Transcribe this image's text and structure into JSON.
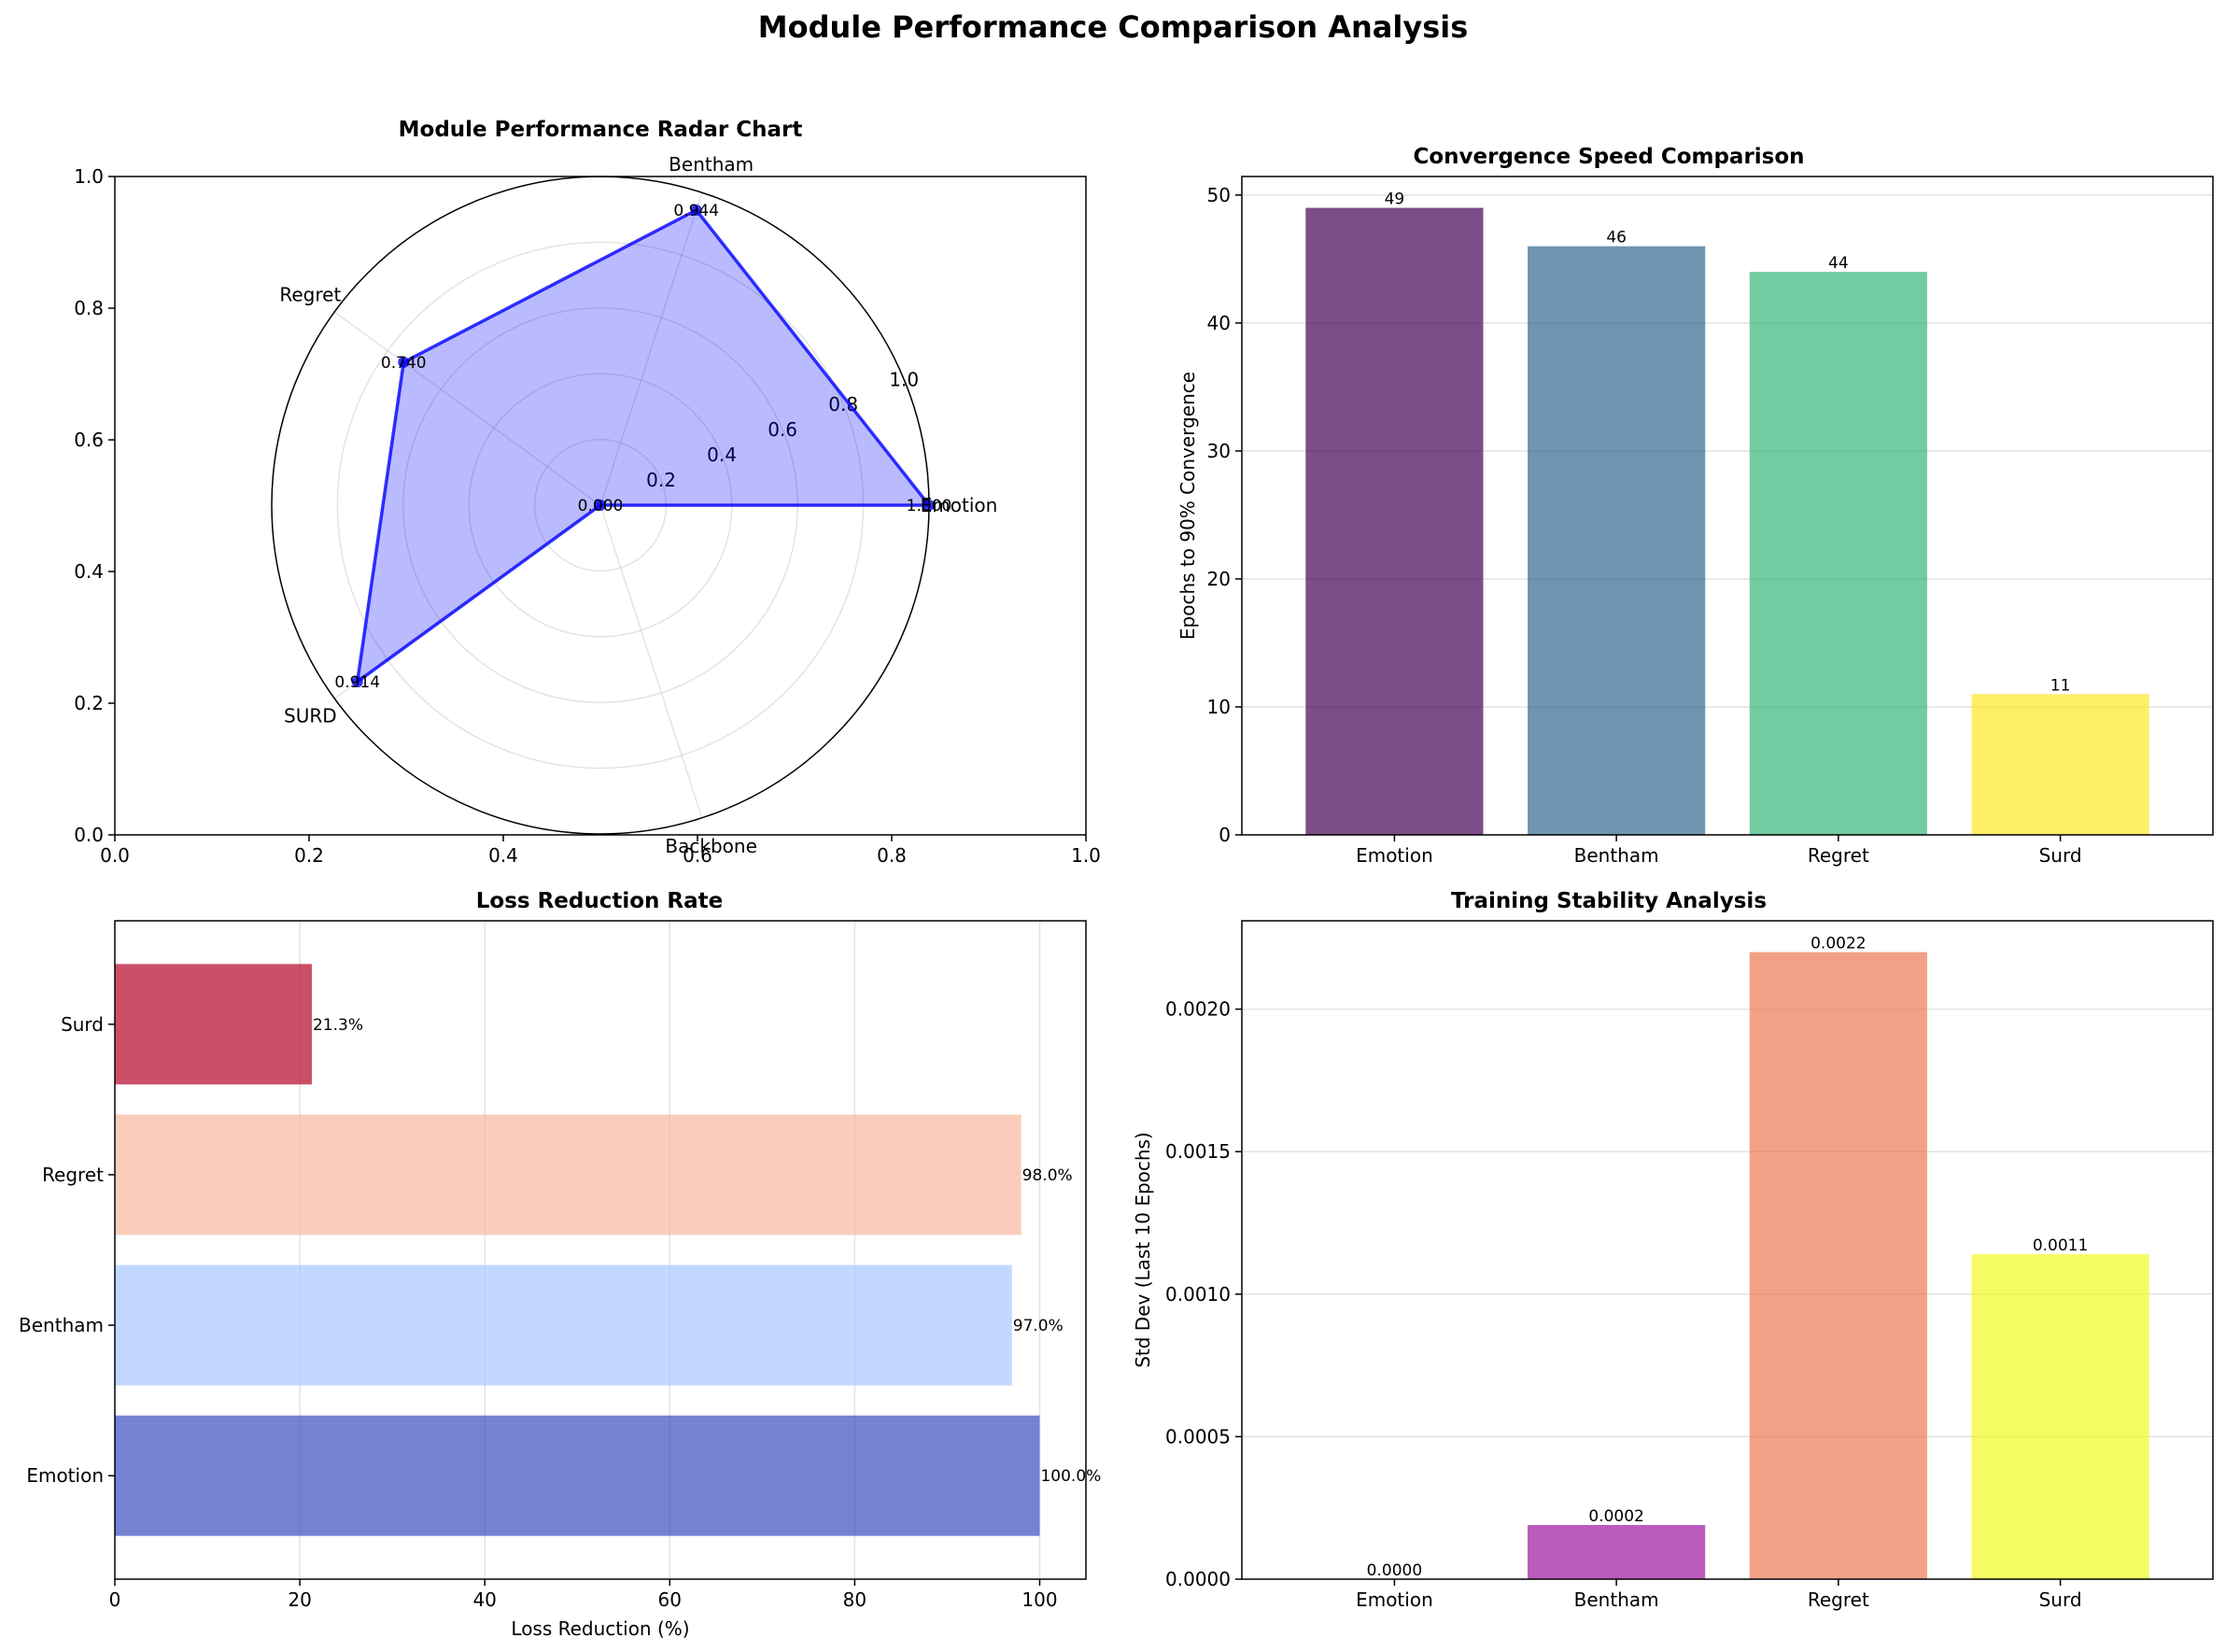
{
  "figure": {
    "title": "Module Performance Comparison Analysis"
  },
  "chart_data": [
    {
      "type": "radar",
      "title": "Module Performance Radar Chart",
      "categories": [
        "Emotion",
        "Bentham",
        "Regret",
        "SURD",
        "Backbone"
      ],
      "values": [
        1.0,
        0.944,
        0.74,
        0.914,
        0.0
      ],
      "value_labels": [
        "1.000",
        "0.944",
        "0.740",
        "0.914",
        "0.000"
      ],
      "rlim": [
        0,
        1
      ],
      "r_ticks": [
        "0.2",
        "0.4",
        "0.6",
        "0.8",
        "1.0"
      ],
      "background_axes": {
        "xlim": [
          0,
          1
        ],
        "ylim": [
          0,
          1
        ],
        "x_ticks": [
          "0.0",
          "0.2",
          "0.4",
          "0.6",
          "0.8",
          "1.0"
        ],
        "y_ticks": [
          "0.0",
          "0.2",
          "0.4",
          "0.6",
          "0.8",
          "1.0"
        ]
      },
      "colors": {
        "line": "#0000ff",
        "fill": "#0000ff"
      }
    },
    {
      "type": "bar",
      "title": "Convergence Speed Comparison",
      "categories": [
        "Emotion",
        "Bentham",
        "Regret",
        "Surd"
      ],
      "values": [
        49,
        46,
        44,
        11
      ],
      "value_labels": [
        "49",
        "46",
        "44",
        "11"
      ],
      "ylabel": "Epochs to 90% Convergence",
      "ylim": [
        0,
        51.45
      ],
      "y_ticks": [
        0,
        10,
        20,
        30,
        40,
        50
      ],
      "y_tick_labels": [
        "0",
        "10",
        "20",
        "30",
        "40",
        "50"
      ],
      "grid": "y",
      "colors": [
        "#440154",
        "#31688e",
        "#35b779",
        "#fde725"
      ]
    },
    {
      "type": "barh",
      "title": "Loss Reduction Rate",
      "categories": [
        "Emotion",
        "Bentham",
        "Regret",
        "Surd"
      ],
      "values": [
        100.0,
        97.0,
        98.0,
        21.3
      ],
      "value_labels": [
        "100.0%",
        "97.0%",
        "98.0%",
        "21.3%"
      ],
      "xlabel": "Loss Reduction (%)",
      "xlim": [
        0,
        105
      ],
      "x_ticks": [
        0,
        20,
        40,
        60,
        80,
        100
      ],
      "x_tick_labels": [
        "0",
        "20",
        "40",
        "60",
        "80",
        "100"
      ],
      "grid": "x",
      "colors": [
        "#3b4cc0",
        "#aac7fd",
        "#f6b89c",
        "#b40426"
      ]
    },
    {
      "type": "bar",
      "title": "Training Stability Analysis",
      "categories": [
        "Emotion",
        "Bentham",
        "Regret",
        "Surd"
      ],
      "values": [
        0.0,
        0.00019,
        0.0022,
        0.00114
      ],
      "value_labels": [
        "0.0000",
        "0.0002",
        "0.0022",
        "0.0011"
      ],
      "ylabel": "Std Dev (Last 10 Epochs)",
      "ylim": [
        0,
        0.00231
      ],
      "y_ticks": [
        0,
        0.0005,
        0.001,
        0.0015,
        0.002
      ],
      "y_tick_labels": [
        "0.0000",
        "0.0005",
        "0.0010",
        "0.0015",
        "0.0020"
      ],
      "grid": "y",
      "colors": [
        "#0d0887",
        "#9c179e",
        "#ed7953",
        "#f0f921"
      ]
    }
  ]
}
